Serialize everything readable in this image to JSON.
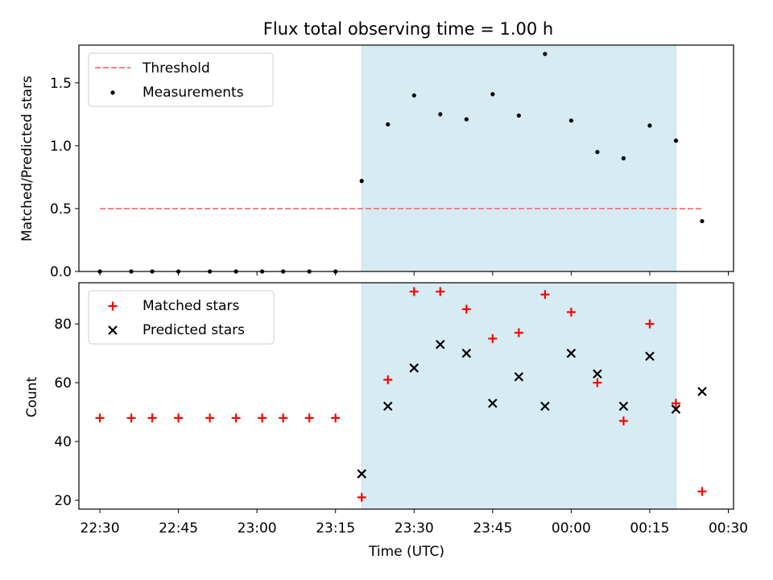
{
  "chart_data": [
    {
      "type": "scatter",
      "title": "Flux total observing time = 1.00 h",
      "xlabel": "",
      "ylabel": "Matched/Predicted stars",
      "xlim": [
        "22:26",
        "00:31"
      ],
      "ylim": [
        0,
        1.8
      ],
      "yticks": [
        "0.0",
        "0.5",
        "1.0",
        "1.5"
      ],
      "legend_position": "top-left",
      "shaded_region": {
        "x_start": "23:20",
        "x_end": "00:20",
        "color": "#add8e6"
      },
      "series": [
        {
          "name": "Threshold",
          "style": "dashed-line",
          "color": "#ff7f7f",
          "x": [
            "22:30",
            "00:25"
          ],
          "y": [
            0.5,
            0.5
          ]
        },
        {
          "name": "Measurements",
          "style": "dot",
          "color": "#000000",
          "x": [
            "22:30",
            "22:36",
            "22:40",
            "22:45",
            "22:51",
            "22:56",
            "23:01",
            "23:05",
            "23:10",
            "23:15",
            "23:20",
            "23:25",
            "23:30",
            "23:35",
            "23:40",
            "23:45",
            "23:50",
            "23:55",
            "00:00",
            "00:05",
            "00:10",
            "00:15",
            "00:20",
            "00:25"
          ],
          "y": [
            0,
            0,
            0,
            0,
            0,
            0,
            0,
            0,
            0,
            0,
            0.72,
            1.17,
            1.4,
            1.25,
            1.21,
            1.41,
            1.24,
            1.73,
            1.2,
            0.95,
            0.9,
            1.16,
            1.04,
            0.4
          ]
        }
      ]
    },
    {
      "type": "scatter",
      "title": "",
      "xlabel": "Time (UTC)",
      "ylabel": "Count",
      "xlim": [
        "22:26",
        "00:31"
      ],
      "ylim": [
        17,
        94
      ],
      "xticks": [
        "22:30",
        "22:45",
        "23:00",
        "23:15",
        "23:30",
        "23:45",
        "00:00",
        "00:15",
        "00:30"
      ],
      "yticks": [
        "20",
        "40",
        "60",
        "80"
      ],
      "legend_position": "top-left",
      "shaded_region": {
        "x_start": "23:20",
        "x_end": "00:20",
        "color": "#add8e6"
      },
      "series": [
        {
          "name": "Matched stars",
          "marker": "plus",
          "color": "#ff0000",
          "x": [
            "22:30",
            "22:36",
            "22:40",
            "22:45",
            "22:51",
            "22:56",
            "23:01",
            "23:05",
            "23:10",
            "23:15",
            "23:20",
            "23:25",
            "23:30",
            "23:35",
            "23:40",
            "23:45",
            "23:50",
            "23:55",
            "00:00",
            "00:05",
            "00:10",
            "00:15",
            "00:20",
            "00:25"
          ],
          "y": [
            48,
            48,
            48,
            48,
            48,
            48,
            48,
            48,
            48,
            48,
            21,
            61,
            91,
            91,
            85,
            75,
            77,
            90,
            84,
            60,
            47,
            80,
            53,
            23
          ]
        },
        {
          "name": "Predicted stars",
          "marker": "x",
          "color": "#000000",
          "x": [
            "23:20",
            "23:25",
            "23:30",
            "23:35",
            "23:40",
            "23:45",
            "23:50",
            "23:55",
            "00:00",
            "00:05",
            "00:10",
            "00:15",
            "00:20",
            "00:25"
          ],
          "y": [
            29,
            52,
            65,
            73,
            70,
            53,
            62,
            52,
            70,
            63,
            52,
            69,
            51,
            57
          ]
        }
      ]
    }
  ]
}
